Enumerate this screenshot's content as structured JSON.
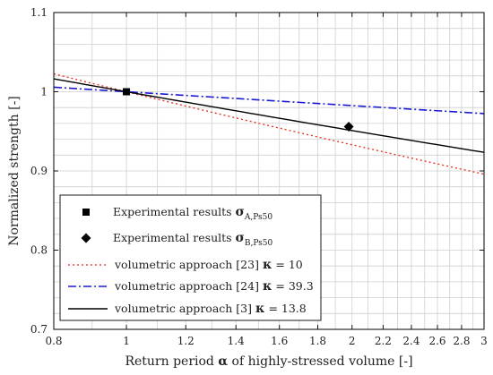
{
  "chart_data": {
    "type": "line",
    "xscale": "log",
    "xlim": [
      0.8,
      3.0
    ],
    "ylim": [
      0.7,
      1.1
    ],
    "grid": true,
    "xlabel_parts": [
      "Return period ",
      "α",
      " of highly-stressed volume [-]"
    ],
    "ylabel": "Normalized strength [-]",
    "xticks": [
      0.8,
      1,
      1.2,
      1.4,
      1.6,
      1.8,
      2,
      2.2,
      2.4,
      2.6,
      2.8,
      3
    ],
    "xtick_labels": [
      "0.8",
      "1",
      "1.2",
      "1.4",
      "1.6",
      "1.8",
      "2",
      "2.2",
      "2.4",
      "2.6",
      "2.8",
      "3"
    ],
    "yticks": [
      0.7,
      0.8,
      0.9,
      1.0,
      1.1
    ],
    "ytick_labels": [
      "0.7",
      "0.8",
      "0.9",
      "1",
      "1.1"
    ],
    "points": [
      {
        "marker": "square",
        "x": 1.0,
        "y": 1.0,
        "legend": {
          "text": "Experimental results ",
          "symbol": "σ",
          "sub": "A,Ps50"
        }
      },
      {
        "marker": "diamond",
        "x": 1.98,
        "y": 0.956,
        "legend": {
          "text": "Experimental results ",
          "symbol": "σ",
          "sub": "B,Ps50"
        }
      }
    ],
    "series": [
      {
        "kappa": 10,
        "color": "#e8291c",
        "dash": "2,3",
        "width": 1.3,
        "legend": {
          "text": "volumetric approach [23] ",
          "symbol": "κ",
          "eq": " = 10"
        }
      },
      {
        "kappa": 39.3,
        "color": "#1a1ad6",
        "dash": "9,3,2,3",
        "width": 1.6,
        "legend": {
          "text": "volumetric approach [24] ",
          "symbol": "κ",
          "eq": " = 39.3"
        }
      },
      {
        "kappa": 13.8,
        "color": "#000000",
        "dash": "",
        "width": 1.4,
        "legend": {
          "text": "volumetric approach [3] ",
          "symbol": "κ",
          "eq": " = 13.8"
        }
      }
    ],
    "legend_position": "lower-left"
  }
}
